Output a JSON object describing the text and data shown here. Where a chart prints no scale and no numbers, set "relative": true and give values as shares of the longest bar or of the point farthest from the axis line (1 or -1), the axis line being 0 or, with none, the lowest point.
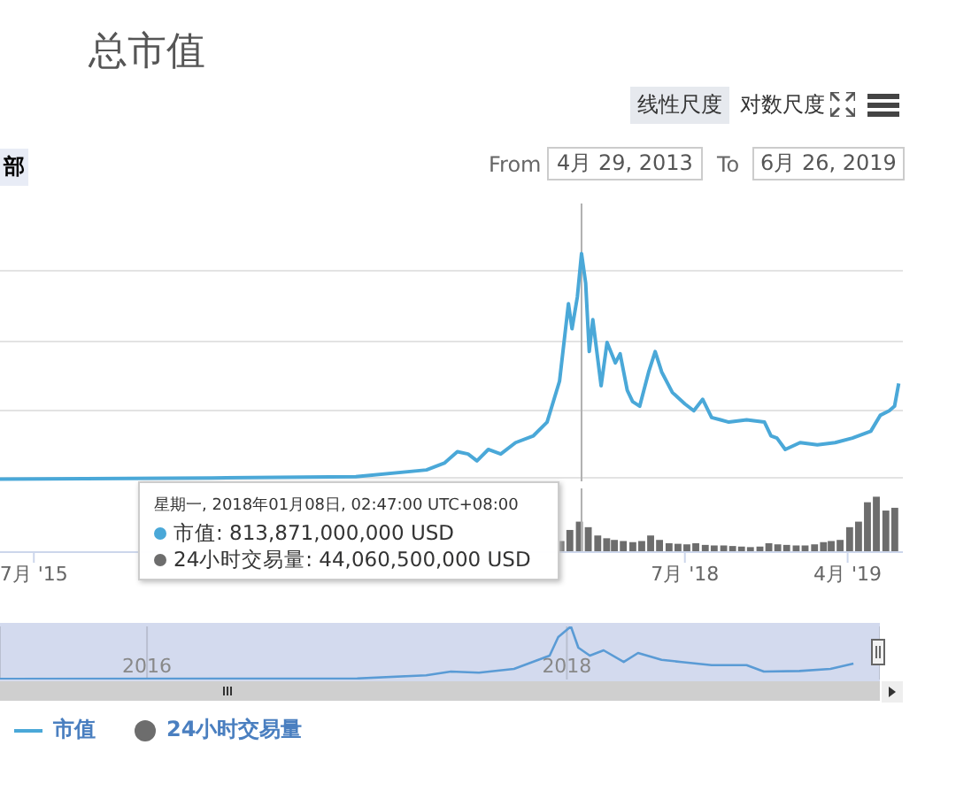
{
  "chart_data": [
    {
      "type": "line",
      "title": "总市值",
      "relative": true,
      "grid": "y",
      "legend": "bottom left",
      "marker": "none",
      "line_style": "solid",
      "xlim": [
        "2015-05-05",
        "2019-07-03"
      ],
      "series": [
        {
          "name": "市值",
          "color": "#4aa8d8",
          "x": [
            "2015-05-05",
            "2016-04-26",
            "2016-12-24",
            "2017-04-22",
            "2017-05-22",
            "2017-06-13",
            "2017-07-01",
            "2017-07-16",
            "2017-08-04",
            "2017-08-25",
            "2017-09-19",
            "2017-10-19",
            "2017-11-11",
            "2017-12-02",
            "2017-12-17",
            "2017-12-23",
            "2018-01-01",
            "2018-01-08",
            "2018-01-15",
            "2018-01-21",
            "2018-01-27",
            "2018-02-10",
            "2018-02-20",
            "2018-03-06",
            "2018-03-14",
            "2018-03-26",
            "2018-04-04",
            "2018-04-16",
            "2018-05-01",
            "2018-05-12",
            "2018-05-23",
            "2018-06-10",
            "2018-07-01",
            "2018-07-16",
            "2018-07-31",
            "2018-08-15",
            "2018-08-30",
            "2018-09-13",
            "2018-10-13",
            "2018-11-12",
            "2018-11-23",
            "2018-12-03",
            "2018-12-17",
            "2019-01-11",
            "2019-02-09",
            "2019-03-11",
            "2019-04-09",
            "2019-05-10",
            "2019-05-26",
            "2019-06-10",
            "2019-06-19",
            "2019-06-26"
          ],
          "values": [
            0.01,
            0.015,
            0.02,
            0.05,
            0.08,
            0.13,
            0.12,
            0.09,
            0.14,
            0.12,
            0.17,
            0.2,
            0.26,
            0.44,
            0.78,
            0.67,
            0.81,
            1.0,
            0.87,
            0.57,
            0.71,
            0.42,
            0.61,
            0.52,
            0.56,
            0.4,
            0.35,
            0.33,
            0.48,
            0.57,
            0.48,
            0.39,
            0.34,
            0.31,
            0.36,
            0.28,
            0.27,
            0.26,
            0.27,
            0.26,
            0.2,
            0.19,
            0.14,
            0.17,
            0.16,
            0.17,
            0.19,
            0.22,
            0.29,
            0.31,
            0.33,
            0.43
          ]
        }
      ],
      "ref_lines": [
        {
          "axis": "x",
          "value": "2018-01-08",
          "label": null,
          "color": "#b0b0b0"
        }
      ],
      "annotations": [
        "星期一, 2018年01月08日, 02:47:00 UTC+08:00",
        "市值: 813,871,000,000 USD",
        "24小时交易量: 44,060,500,000 USD",
        "线性尺度",
        "对数尺度",
        "部",
        "From",
        "4月 29, 2013",
        "To",
        "6月 26, 2019"
      ]
    },
    {
      "type": "bar",
      "relative": true,
      "legend": "bottom left",
      "xlim": [
        "2015-05-05",
        "2019-07-03"
      ],
      "xticks": [
        {
          "value": "2015-07-01",
          "label": "7月 '15"
        },
        {
          "value": "2018-07-01",
          "label": "7月 '18"
        },
        {
          "value": "2019-04-01",
          "label": "4月 '19"
        }
      ],
      "series": [
        {
          "name": "24小时交易量",
          "color": "#6d6d6d",
          "x": [
            "2017-12-05",
            "2017-12-20",
            "2018-01-05",
            "2018-01-20",
            "2018-02-05",
            "2018-02-20",
            "2018-03-05",
            "2018-03-20",
            "2018-04-05",
            "2018-04-20",
            "2018-05-05",
            "2018-05-20",
            "2018-06-05",
            "2018-06-20",
            "2018-07-05",
            "2018-07-20",
            "2018-08-05",
            "2018-08-20",
            "2018-09-05",
            "2018-09-20",
            "2018-10-05",
            "2018-10-20",
            "2018-11-05",
            "2018-11-20",
            "2018-12-05",
            "2018-12-20",
            "2019-01-05",
            "2019-01-20",
            "2019-02-05",
            "2019-02-20",
            "2019-03-05",
            "2019-03-20",
            "2019-04-05",
            "2019-04-20",
            "2019-05-05",
            "2019-05-20",
            "2019-06-05",
            "2019-06-20"
          ],
          "values": [
            0.2,
            0.4,
            0.55,
            0.45,
            0.3,
            0.25,
            0.22,
            0.2,
            0.18,
            0.2,
            0.3,
            0.22,
            0.16,
            0.15,
            0.14,
            0.16,
            0.13,
            0.12,
            0.12,
            0.11,
            0.1,
            0.09,
            0.1,
            0.16,
            0.14,
            0.13,
            0.12,
            0.12,
            0.14,
            0.18,
            0.2,
            0.22,
            0.45,
            0.55,
            0.9,
            1.0,
            0.75,
            0.8
          ]
        }
      ],
      "ref_lines": [
        {
          "axis": "x",
          "value": "2018-01-08",
          "label": null,
          "color": "#b0b0b0"
        }
      ]
    },
    {
      "type": "line",
      "relative": true,
      "grid": "x",
      "marker": "none",
      "xlim": [
        "2015-04-20",
        "2019-06-30"
      ],
      "xticks": [
        "2016",
        "2018"
      ],
      "series": [
        {
          "color": "#5a9bd5",
          "x": [
            "2015-04-20",
            "2016-06-01",
            "2017-01-01",
            "2017-05-01",
            "2017-06-13",
            "2017-08-01",
            "2017-10-01",
            "2017-12-02",
            "2017-12-17",
            "2018-01-08",
            "2018-01-21",
            "2018-02-10",
            "2018-03-06",
            "2018-04-10",
            "2018-05-05",
            "2018-06-15",
            "2018-07-20",
            "2018-09-10",
            "2018-11-10",
            "2018-12-10",
            "2019-02-10",
            "2019-04-05",
            "2019-05-15"
          ],
          "values": [
            0.01,
            0.015,
            0.02,
            0.08,
            0.15,
            0.13,
            0.2,
            0.45,
            0.8,
            1.0,
            0.6,
            0.45,
            0.55,
            0.33,
            0.5,
            0.37,
            0.33,
            0.27,
            0.27,
            0.15,
            0.16,
            0.2,
            0.3
          ]
        }
      ]
    }
  ]
}
